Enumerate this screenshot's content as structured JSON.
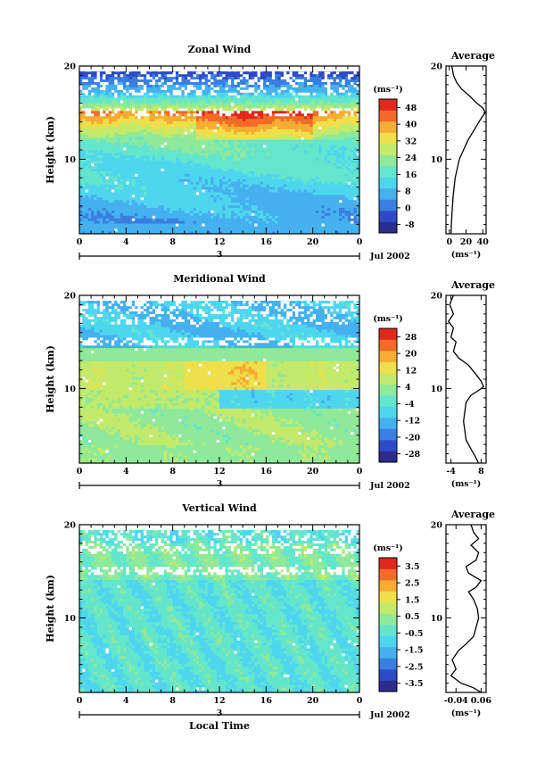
{
  "chart_data": [
    {
      "type": "heatmap",
      "title": "Zonal Wind",
      "xlabel": "",
      "ylabel": "Height (km)",
      "x": {
        "range": [
          0,
          24
        ],
        "ticks": [
          "0",
          "4",
          "8",
          "12",
          "16",
          "20",
          "0"
        ]
      },
      "y": {
        "range": [
          2,
          20
        ],
        "ticks": [
          "10",
          "20"
        ]
      },
      "date_marker": "3",
      "date_label": "Jul 2002",
      "colorbar": {
        "unit": "(ms⁻¹)",
        "range": [
          -12,
          52
        ],
        "ticks": [
          "-8",
          "0",
          "8",
          "16",
          "24",
          "32",
          "40",
          "48"
        ]
      },
      "profile": {
        "title": "Average",
        "xlabel": "(ms⁻¹)",
        "xrange": [
          -4,
          44
        ],
        "xticks": [
          "0",
          "20",
          "40"
        ],
        "ytick_labels": [
          "10",
          "20"
        ],
        "points": [
          [
            2,
            2.0
          ],
          [
            3,
            4.0
          ],
          [
            4.5,
            6.0
          ],
          [
            7,
            8.0
          ],
          [
            12,
            10.0
          ],
          [
            22,
            12.0
          ],
          [
            32,
            13.5
          ],
          [
            39,
            14.5
          ],
          [
            43,
            15.0
          ],
          [
            40,
            15.5
          ],
          [
            33,
            16.0
          ],
          [
            24,
            16.8
          ],
          [
            15,
            17.5
          ],
          [
            9,
            18.2
          ],
          [
            5,
            19.0
          ],
          [
            3,
            20.0
          ]
        ]
      }
    },
    {
      "type": "heatmap",
      "title": "Meridional Wind",
      "xlabel": "",
      "ylabel": "Height (km)",
      "x": {
        "range": [
          0,
          24
        ],
        "ticks": [
          "0",
          "4",
          "8",
          "12",
          "16",
          "20",
          "0"
        ]
      },
      "y": {
        "range": [
          2,
          20
        ],
        "ticks": [
          "10",
          "20"
        ]
      },
      "date_marker": "3",
      "date_label": "Jul 2002",
      "colorbar": {
        "unit": "(ms⁻¹)",
        "range": [
          -32,
          32
        ],
        "ticks": [
          "-28",
          "-20",
          "-12",
          "-4",
          "4",
          "12",
          "20",
          "28"
        ]
      },
      "profile": {
        "title": "Average",
        "xlabel": "(ms⁻¹)",
        "xrange": [
          -6,
          10
        ],
        "xticks": [
          "-4",
          "8"
        ],
        "ytick_labels": [
          "10",
          "20"
        ],
        "points": [
          [
            7,
            2.0
          ],
          [
            5.5,
            2.8
          ],
          [
            4,
            3.5
          ],
          [
            2,
            4.5
          ],
          [
            1.5,
            5.5
          ],
          [
            1,
            6.5
          ],
          [
            1.5,
            7.5
          ],
          [
            2,
            8.5
          ],
          [
            4,
            9.3
          ],
          [
            7,
            9.8
          ],
          [
            9,
            10.2
          ],
          [
            8,
            10.8
          ],
          [
            6,
            11.5
          ],
          [
            3,
            12.5
          ],
          [
            -1,
            13.3
          ],
          [
            -3,
            14.0
          ],
          [
            -2,
            15.0
          ],
          [
            -4,
            15.5
          ],
          [
            -3,
            16.5
          ],
          [
            -5,
            17.2
          ],
          [
            -3,
            18.0
          ],
          [
            -4.5,
            19.0
          ],
          [
            -3,
            20.0
          ]
        ]
      }
    },
    {
      "type": "heatmap",
      "title": "Vertical Wind",
      "xlabel": "Local Time",
      "ylabel": "Height (km)",
      "x": {
        "range": [
          0,
          24
        ],
        "ticks": [
          "0",
          "4",
          "8",
          "12",
          "16",
          "20",
          "0"
        ]
      },
      "y": {
        "range": [
          2,
          20
        ],
        "ticks": [
          "10",
          "20"
        ]
      },
      "date_marker": "3",
      "date_label": "Jul 2002",
      "colorbar": {
        "unit": "(ms⁻¹)",
        "range": [
          -4,
          4
        ],
        "ticks": [
          "-3.5",
          "-2.5",
          "-1.5",
          "-0.5",
          "0.5",
          "1.5",
          "2.5",
          "3.5"
        ]
      },
      "profile": {
        "title": "Average",
        "xlabel": "(ms⁻¹)",
        "xrange": [
          -0.08,
          0.08
        ],
        "xticks": [
          "-0.04",
          "0.06"
        ],
        "ytick_labels": [
          "10",
          "20"
        ],
        "points": [
          [
            0.06,
            2.0
          ],
          [
            0.03,
            2.5
          ],
          [
            -0.02,
            3.0
          ],
          [
            -0.06,
            3.8
          ],
          [
            -0.04,
            4.5
          ],
          [
            -0.055,
            5.5
          ],
          [
            -0.03,
            6.5
          ],
          [
            0.0,
            7.2
          ],
          [
            0.03,
            8.0
          ],
          [
            0.04,
            9.0
          ],
          [
            0.05,
            10.0
          ],
          [
            0.045,
            11.0
          ],
          [
            0.03,
            12.0
          ],
          [
            0.01,
            12.8
          ],
          [
            0.04,
            13.3
          ],
          [
            0.06,
            14.0
          ],
          [
            0.01,
            14.8
          ],
          [
            0.0,
            15.5
          ],
          [
            0.04,
            16.2
          ],
          [
            0.05,
            17.0
          ],
          [
            0.02,
            17.8
          ],
          [
            0.05,
            18.5
          ],
          [
            0.03,
            19.2
          ],
          [
            0.02,
            20.0
          ]
        ]
      }
    }
  ]
}
